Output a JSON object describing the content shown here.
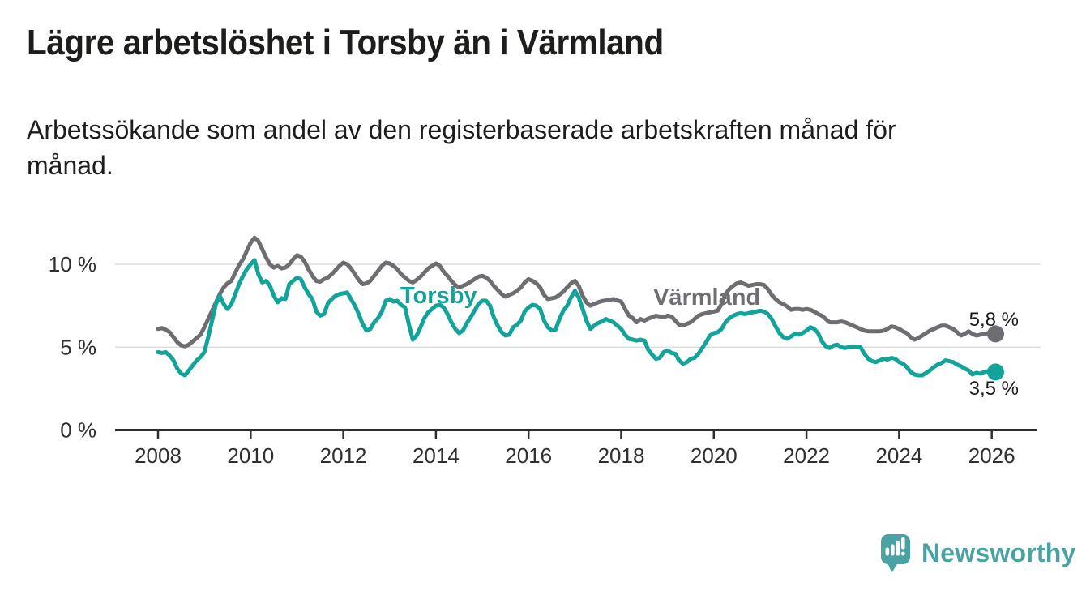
{
  "header": {
    "title": "Lägre arbetslöshet i Torsby än i Värmland",
    "subtitle": "Arbetssökande som andel av den registerbaserade arbetskraften månad för\nmånad."
  },
  "chart_data": {
    "type": "line",
    "title": "Lägre arbetslöshet i Torsby än i Värmland",
    "x_start": "2008-01",
    "x_end": "2026-02",
    "x_interval": "month",
    "x_ticks": [
      "2008",
      "2010",
      "2012",
      "2014",
      "2016",
      "2018",
      "2020",
      "2022",
      "2024",
      "2026"
    ],
    "y_ticks": [
      {
        "value": 0,
        "label": "0 %"
      },
      {
        "value": 5,
        "label": "5 %"
      },
      {
        "value": 10,
        "label": "10 %"
      }
    ],
    "ylim": [
      0,
      12
    ],
    "grid": "horizontal",
    "legend_position": "inline-labels",
    "series": [
      {
        "name": "Värmland",
        "label": "Värmland",
        "color": "#6e6e72",
        "end_label": "5,8 %",
        "end_value": 5.8,
        "values": [
          6.1,
          6.15,
          6.05,
          5.9,
          5.6,
          5.3,
          5.1,
          5.05,
          5.15,
          5.35,
          5.55,
          5.75,
          6.2,
          6.7,
          7.2,
          7.7,
          8.2,
          8.6,
          8.85,
          9.0,
          9.5,
          9.95,
          10.3,
          10.8,
          11.3,
          11.6,
          11.4,
          10.9,
          10.4,
          10.0,
          9.8,
          9.9,
          9.75,
          9.8,
          10.0,
          10.3,
          10.55,
          10.45,
          10.15,
          9.7,
          9.3,
          9.0,
          8.95,
          9.1,
          9.2,
          9.4,
          9.65,
          9.9,
          10.1,
          10.0,
          9.75,
          9.4,
          9.05,
          8.8,
          8.85,
          9.0,
          9.3,
          9.6,
          9.9,
          10.1,
          10.05,
          9.9,
          9.7,
          9.4,
          9.2,
          9.0,
          8.9,
          9.05,
          9.25,
          9.5,
          9.75,
          9.9,
          10.05,
          9.9,
          9.55,
          9.3,
          9.0,
          8.75,
          8.6,
          8.7,
          8.8,
          8.95,
          9.1,
          9.25,
          9.3,
          9.2,
          9.0,
          8.7,
          8.45,
          8.2,
          8.05,
          8.15,
          8.25,
          8.4,
          8.6,
          8.9,
          9.1,
          9.0,
          8.85,
          8.6,
          8.15,
          7.9,
          7.95,
          8.0,
          8.15,
          8.35,
          8.6,
          8.85,
          9.0,
          8.7,
          8.1,
          7.7,
          7.5,
          7.6,
          7.7,
          7.78,
          7.82,
          7.86,
          7.9,
          7.82,
          7.75,
          7.3,
          6.9,
          6.75,
          6.5,
          6.7,
          6.6,
          6.72,
          6.8,
          6.9,
          6.85,
          6.8,
          6.9,
          6.85,
          6.6,
          6.35,
          6.3,
          6.4,
          6.5,
          6.7,
          6.9,
          7.0,
          7.05,
          7.1,
          7.15,
          7.2,
          7.6,
          8.2,
          8.5,
          8.7,
          8.85,
          8.9,
          8.8,
          8.7,
          8.75,
          8.8,
          8.8,
          8.75,
          8.5,
          8.15,
          7.9,
          7.7,
          7.6,
          7.45,
          7.25,
          7.3,
          7.3,
          7.25,
          7.3,
          7.25,
          7.15,
          7.0,
          6.9,
          6.7,
          6.5,
          6.5,
          6.5,
          6.55,
          6.5,
          6.4,
          6.3,
          6.2,
          6.1,
          6.0,
          5.95,
          5.95,
          5.95,
          5.95,
          6.0,
          6.1,
          6.25,
          6.2,
          6.1,
          5.95,
          5.85,
          5.6,
          5.45,
          5.55,
          5.7,
          5.85,
          6.0,
          6.1,
          6.2,
          6.3,
          6.3,
          6.2,
          6.1,
          5.9,
          5.7,
          5.8,
          5.95,
          5.8,
          5.7,
          5.75,
          5.8,
          5.85,
          5.85,
          5.8
        ]
      },
      {
        "name": "Torsby",
        "label": "Torsby",
        "color": "#12a39a",
        "end_label": "3,5 %",
        "end_value": 3.5,
        "values": [
          4.7,
          4.65,
          4.7,
          4.5,
          4.2,
          3.7,
          3.4,
          3.3,
          3.6,
          3.9,
          4.2,
          4.4,
          4.7,
          5.6,
          6.6,
          7.6,
          8.1,
          7.6,
          7.3,
          7.6,
          8.2,
          8.8,
          9.3,
          9.7,
          10.0,
          10.25,
          9.4,
          8.9,
          9.0,
          8.7,
          8.1,
          7.7,
          7.95,
          7.9,
          8.8,
          9.0,
          9.2,
          9.1,
          8.6,
          8.2,
          7.9,
          7.15,
          6.9,
          7.0,
          7.65,
          7.9,
          8.1,
          8.2,
          8.25,
          8.3,
          7.9,
          7.5,
          7.0,
          6.4,
          6.0,
          6.1,
          6.5,
          6.75,
          7.15,
          7.8,
          7.9,
          7.75,
          7.8,
          7.55,
          7.4,
          6.35,
          5.45,
          5.7,
          6.2,
          6.75,
          7.1,
          7.3,
          7.5,
          7.55,
          7.4,
          7.0,
          6.5,
          6.1,
          5.85,
          6.0,
          6.45,
          6.8,
          7.2,
          7.6,
          7.8,
          7.8,
          7.5,
          6.8,
          6.3,
          5.9,
          5.7,
          5.75,
          6.2,
          6.35,
          6.6,
          7.15,
          7.4,
          7.55,
          7.5,
          7.3,
          6.6,
          6.2,
          6.0,
          6.05,
          6.7,
          7.2,
          7.5,
          8.0,
          8.4,
          8.0,
          7.3,
          6.6,
          6.1,
          6.3,
          6.45,
          6.55,
          6.7,
          6.6,
          6.5,
          6.3,
          6.1,
          5.75,
          5.5,
          5.45,
          5.4,
          5.45,
          5.4,
          4.85,
          4.55,
          4.3,
          4.35,
          4.7,
          4.8,
          4.65,
          4.6,
          4.2,
          4.0,
          4.1,
          4.3,
          4.35,
          4.6,
          4.95,
          5.3,
          5.7,
          5.85,
          5.9,
          6.1,
          6.5,
          6.75,
          6.9,
          7.0,
          7.05,
          7.0,
          7.05,
          7.1,
          7.15,
          7.2,
          7.15,
          7.0,
          6.7,
          6.25,
          5.85,
          5.6,
          5.5,
          5.65,
          5.8,
          5.75,
          5.85,
          6.0,
          6.2,
          6.1,
          5.85,
          5.35,
          5.05,
          4.95,
          5.1,
          5.15,
          5.0,
          4.95,
          5.0,
          5.05,
          5.0,
          5.0,
          4.6,
          4.3,
          4.15,
          4.1,
          4.2,
          4.3,
          4.25,
          4.35,
          4.3,
          4.1,
          4.0,
          3.8,
          3.5,
          3.35,
          3.3,
          3.3,
          3.45,
          3.6,
          3.8,
          3.95,
          4.05,
          4.2,
          4.15,
          4.1,
          3.95,
          3.85,
          3.7,
          3.6,
          3.35,
          3.45,
          3.4,
          3.5,
          3.55,
          3.55,
          3.5
        ]
      }
    ],
    "style": {
      "axis_color": "#2e2e2e",
      "grid_color": "#dedede",
      "tick_label_color": "#2f2f2f"
    }
  },
  "branding": {
    "logo_text": "Newsworthy",
    "color": "#4aa3a2"
  }
}
